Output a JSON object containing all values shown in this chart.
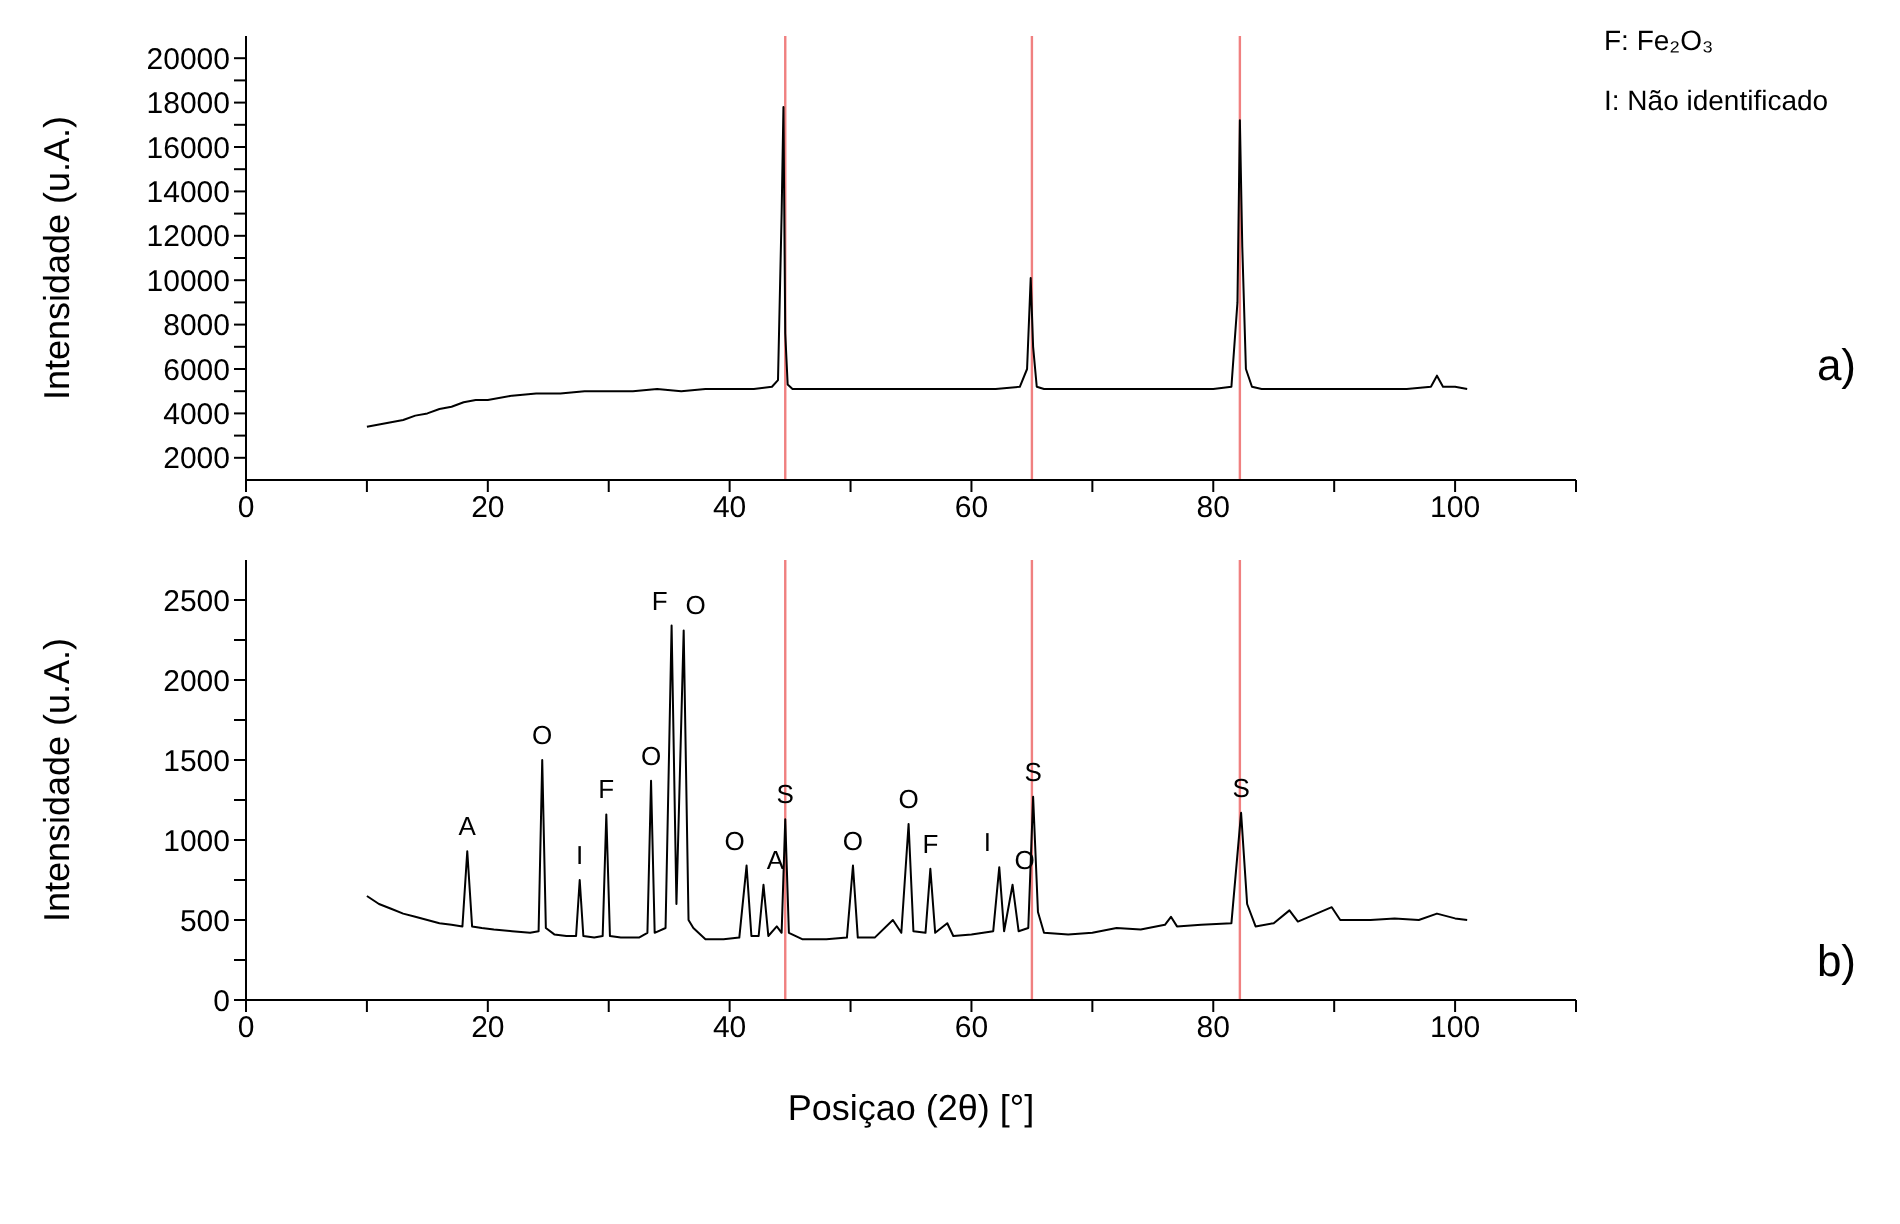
{
  "chart_data": [
    {
      "type": "line",
      "ylabel": "Intensidade (u.A.)",
      "xlim": [
        0,
        110
      ],
      "xticks": [
        0,
        {
          "value": 10,
          "label": null
        },
        20,
        {
          "value": 30,
          "label": null
        },
        40,
        {
          "value": 50,
          "label": null
        },
        60,
        {
          "value": 70,
          "label": null
        },
        80,
        {
          "value": 90,
          "label": null
        },
        100,
        {
          "value": 110,
          "label": null
        }
      ],
      "ylim": [
        1000,
        21000
      ],
      "yticks": [
        2000,
        {
          "value": 3000,
          "label": null
        },
        4000,
        {
          "value": 5000,
          "label": null
        },
        6000,
        {
          "value": 7000,
          "label": null
        },
        8000,
        {
          "value": 9000,
          "label": null
        },
        10000,
        {
          "value": 11000,
          "label": null
        },
        12000,
        {
          "value": 13000,
          "label": null
        },
        14000,
        {
          "value": 15000,
          "label": null
        },
        16000,
        {
          "value": 17000,
          "label": null
        },
        18000,
        {
          "value": 19000,
          "label": null
        },
        20000
      ],
      "grid": false,
      "legend": false,
      "marker": "none",
      "line_style": "solid",
      "series": [
        {
          "color": "#000000",
          "x": [
            10,
            11,
            12,
            13,
            14,
            15,
            16,
            17,
            18,
            19,
            20,
            22,
            24,
            26,
            28,
            30,
            32,
            34,
            36,
            38,
            40,
            42,
            43.5,
            44.0,
            44.3,
            44.45,
            44.6,
            44.8,
            45.2,
            46,
            48,
            50,
            52,
            54,
            56,
            58,
            60,
            62,
            64,
            64.6,
            64.9,
            65.1,
            65.4,
            66,
            68,
            70,
            72,
            74,
            76,
            78,
            80,
            81.5,
            82.0,
            82.2,
            82.4,
            82.7,
            83.2,
            84,
            86,
            88,
            90,
            92,
            94,
            96,
            98,
            98.5,
            99,
            100,
            101
          ],
          "values": [
            3400,
            3500,
            3600,
            3700,
            3900,
            4000,
            4200,
            4300,
            4500,
            4600,
            4600,
            4800,
            4900,
            4900,
            5000,
            5000,
            5000,
            5100,
            5000,
            5100,
            5100,
            5100,
            5200,
            5500,
            13000,
            17800,
            7600,
            5300,
            5100,
            5100,
            5100,
            5100,
            5100,
            5100,
            5100,
            5100,
            5100,
            5100,
            5200,
            6000,
            10100,
            7000,
            5200,
            5100,
            5100,
            5100,
            5100,
            5100,
            5100,
            5100,
            5100,
            5200,
            9000,
            17200,
            11500,
            6000,
            5200,
            5100,
            5100,
            5100,
            5100,
            5100,
            5100,
            5100,
            5200,
            5700,
            5200,
            5200,
            5100
          ]
        }
      ],
      "ref_lines": [
        {
          "axis": "x",
          "value": 44.6,
          "color": "#f08080"
        },
        {
          "axis": "x",
          "value": 65,
          "color": "#f08080"
        },
        {
          "axis": "x",
          "value": 82.2,
          "color": "#f08080"
        }
      ],
      "annotations": [
        "F: Fe₂O₃",
        "I: Não identificado",
        "a)"
      ]
    },
    {
      "type": "line",
      "xlabel": "Posiçao (2θ) [°]",
      "ylabel": "Intensidade (u.A.)",
      "xlim": [
        0,
        110
      ],
      "xticks": [
        0,
        {
          "value": 10,
          "label": null
        },
        20,
        {
          "value": 30,
          "label": null
        },
        40,
        {
          "value": 50,
          "label": null
        },
        60,
        {
          "value": 70,
          "label": null
        },
        80,
        {
          "value": 90,
          "label": null
        },
        100,
        {
          "value": 110,
          "label": null
        }
      ],
      "ylim": [
        0,
        2750
      ],
      "yticks": [
        0,
        {
          "value": 250,
          "label": null
        },
        500,
        {
          "value": 750,
          "label": null
        },
        1000,
        {
          "value": 1250,
          "label": null
        },
        1500,
        {
          "value": 1750,
          "label": null
        },
        2000,
        {
          "value": 2250,
          "label": null
        },
        2500
      ],
      "grid": false,
      "legend": false,
      "marker": "none",
      "line_style": "solid",
      "series": [
        {
          "color": "#000000",
          "x": [
            10,
            11,
            12,
            13,
            14,
            15,
            16,
            17,
            17.9,
            18.3,
            18.7,
            19.5,
            20.5,
            22,
            23.5,
            24.2,
            24.5,
            24.8,
            25.5,
            26.5,
            27.3,
            27.6,
            27.9,
            28.8,
            29.5,
            29.8,
            30.1,
            31,
            32.5,
            33.2,
            33.5,
            33.8,
            34.7,
            35.2,
            35.6,
            36.2,
            36.6,
            37,
            38,
            39.5,
            40.8,
            41.4,
            41.8,
            42.4,
            42.8,
            43.2,
            43.9,
            44.3,
            44.6,
            44.9,
            46,
            48,
            49.7,
            50.2,
            50.6,
            52,
            53.5,
            54.2,
            54.8,
            55.2,
            56.2,
            56.6,
            57,
            58,
            58.5,
            60,
            61.8,
            62.3,
            62.7,
            63.4,
            63.9,
            64.7,
            65.1,
            65.5,
            66,
            68,
            70,
            72,
            74,
            76,
            76.5,
            77,
            79,
            81.5,
            82.3,
            82.8,
            83.5,
            85,
            86.3,
            87,
            89.8,
            90.5,
            93,
            95,
            97,
            98.5,
            100,
            101
          ],
          "values": [
            650,
            600,
            570,
            540,
            520,
            500,
            480,
            470,
            460,
            930,
            460,
            450,
            440,
            430,
            420,
            430,
            1500,
            450,
            410,
            400,
            400,
            750,
            400,
            390,
            400,
            1160,
            400,
            390,
            390,
            420,
            1370,
            420,
            450,
            2340,
            600,
            2310,
            500,
            450,
            380,
            380,
            390,
            840,
            400,
            400,
            720,
            400,
            460,
            420,
            1130,
            420,
            380,
            380,
            390,
            840,
            390,
            390,
            500,
            420,
            1100,
            430,
            420,
            820,
            420,
            480,
            400,
            410,
            430,
            830,
            430,
            720,
            430,
            450,
            1270,
            550,
            420,
            410,
            420,
            450,
            440,
            470,
            520,
            460,
            470,
            480,
            1170,
            600,
            460,
            480,
            560,
            490,
            580,
            500,
            500,
            510,
            500,
            540,
            510,
            500
          ]
        }
      ],
      "ref_lines": [
        {
          "axis": "x",
          "value": 44.6,
          "color": "#f08080"
        },
        {
          "axis": "x",
          "value": 65,
          "color": "#f08080"
        },
        {
          "axis": "x",
          "value": 82.2,
          "color": "#f08080"
        }
      ],
      "annotations": [
        {
          "text": "A",
          "x": 18.3,
          "y": 930
        },
        {
          "text": "O",
          "x": 24.5,
          "y": 1500
        },
        {
          "text": "I",
          "x": 27.6,
          "y": 750
        },
        {
          "text": "F",
          "x": 29.8,
          "y": 1160
        },
        {
          "text": "O",
          "x": 33.5,
          "y": 1370
        },
        {
          "text": "F",
          "x": 35.2,
          "y": 2340
        },
        {
          "text": "O",
          "x": 36.2,
          "y": 2310
        },
        {
          "text": "O",
          "x": 41.4,
          "y": 840
        },
        {
          "text": "A",
          "x": 42.8,
          "y": 720
        },
        {
          "text": "S",
          "x": 44.6,
          "y": 1130
        },
        {
          "text": "O",
          "x": 50.2,
          "y": 840
        },
        {
          "text": "O",
          "x": 54.8,
          "y": 1100
        },
        {
          "text": "F",
          "x": 56.6,
          "y": 820
        },
        {
          "text": "I",
          "x": 62.3,
          "y": 830
        },
        {
          "text": "O",
          "x": 63.4,
          "y": 720
        },
        {
          "text": "S",
          "x": 65.1,
          "y": 1270
        },
        {
          "text": "S",
          "x": 82.3,
          "y": 1170
        },
        "b)"
      ]
    }
  ]
}
